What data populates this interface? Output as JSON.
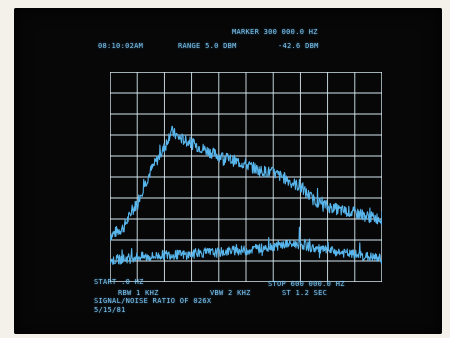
{
  "screen": {
    "header": {
      "marker_label": "MARKER 300 000.0 HZ",
      "time": "08:10:02AM",
      "range": "RANGE 5.0 DBM",
      "marker_level": "-42.6 DBM"
    },
    "footer": {
      "start": "START .0 HZ",
      "stop": "STOP 600 000.0 HZ",
      "rbw": "RBW 1 KHZ",
      "vbw": "VBW 2 KHZ",
      "st": "ST 1.2 SEC",
      "title": "SIGNAL/NOISE RATIO OF 026X",
      "date": "5/15/81"
    }
  },
  "colors": {
    "trace": "#58b6ec",
    "grid": "#d6e8f0",
    "text": "#7fc6f2",
    "screen_bg": "#070707"
  },
  "chart_data": {
    "type": "line",
    "x_range": [
      0,
      600000
    ],
    "x_unit": "HZ",
    "grid": true,
    "grid_divisions": {
      "x": 10,
      "y": 10
    },
    "series": [
      {
        "x": [
          0,
          30000,
          60000,
          90000,
          120000,
          135000,
          150000,
          180000,
          210000,
          240000,
          270000,
          300000,
          330000,
          360000,
          390000,
          420000,
          450000,
          480000,
          510000,
          540000,
          570000,
          600000
        ],
        "y_div": [
          2.2,
          2.6,
          3.8,
          5.3,
          6.4,
          7.2,
          6.9,
          6.6,
          6.3,
          6.0,
          5.8,
          5.6,
          5.3,
          5.2,
          4.9,
          4.5,
          3.9,
          3.6,
          3.4,
          3.3,
          3.1,
          3.0
        ]
      },
      {
        "x": [
          0,
          30000,
          60000,
          90000,
          120000,
          150000,
          180000,
          210000,
          240000,
          270000,
          300000,
          330000,
          360000,
          390000,
          420000,
          450000,
          480000,
          510000,
          540000,
          570000,
          600000
        ],
        "y_div": [
          1.0,
          1.1,
          1.2,
          1.2,
          1.3,
          1.3,
          1.3,
          1.4,
          1.4,
          1.5,
          1.5,
          1.6,
          1.7,
          1.8,
          1.8,
          1.6,
          1.5,
          1.4,
          1.3,
          1.2,
          1.1
        ]
      }
    ]
  }
}
